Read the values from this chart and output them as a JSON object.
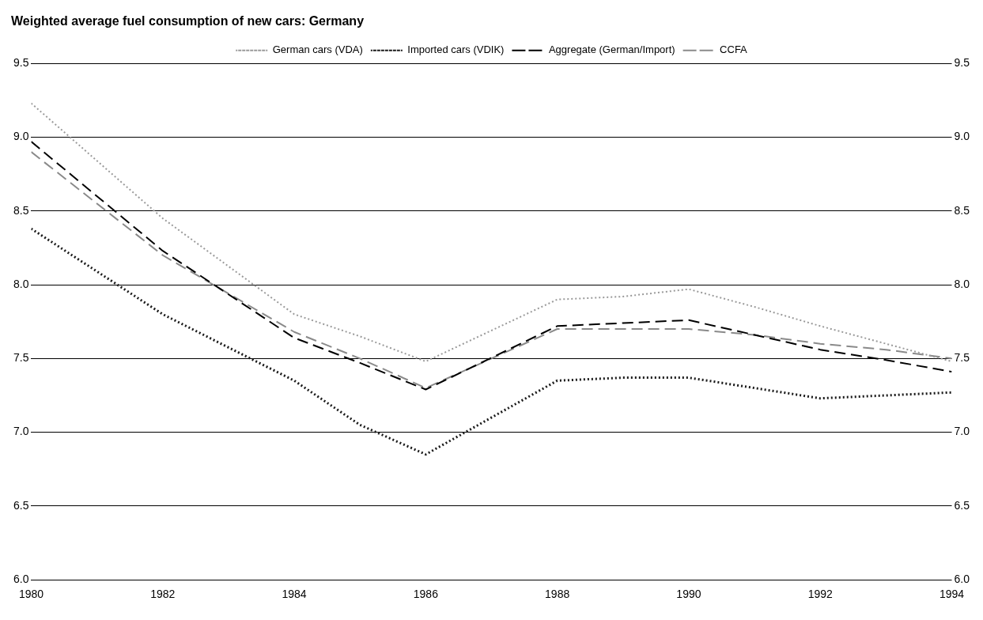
{
  "chart_data": {
    "type": "line",
    "title": "Weighted average fuel consumption of new cars: Germany",
    "x": [
      1980,
      1982,
      1984,
      1985,
      1986,
      1988,
      1989,
      1990,
      1991,
      1992,
      1993,
      1994
    ],
    "series": [
      {
        "name": "German cars (VDA)",
        "color": "#9a9a9a",
        "line_style": "dotted",
        "values": [
          9.23,
          8.45,
          7.8,
          7.65,
          7.48,
          7.9,
          7.92,
          7.97,
          7.85,
          7.72,
          7.6,
          7.48
        ]
      },
      {
        "name": "Imported cars (VDIK)",
        "color": "#1a1a1a",
        "line_style": "dotted",
        "values": [
          8.38,
          7.8,
          7.35,
          7.05,
          6.85,
          7.35,
          7.37,
          7.37,
          7.3,
          7.23,
          7.25,
          7.27
        ]
      },
      {
        "name": "Aggregate (German/Import)",
        "color": "#000000",
        "line_style": "dashed",
        "values": [
          8.97,
          8.23,
          7.64,
          7.47,
          7.29,
          7.72,
          7.74,
          7.76,
          7.66,
          7.56,
          7.49,
          7.41
        ]
      },
      {
        "name": "CCFA",
        "color": "#8a8a8a",
        "line_style": "dashed",
        "values": [
          8.9,
          8.2,
          7.68,
          7.5,
          7.3,
          7.7,
          7.7,
          7.7,
          7.66,
          7.6,
          7.56,
          7.5
        ]
      }
    ],
    "xlim": [
      1980,
      1994
    ],
    "xticks": [
      1980,
      1982,
      1984,
      1986,
      1988,
      1990,
      1992,
      1994
    ],
    "ylim": [
      6.0,
      9.5
    ],
    "yticks": [
      {
        "value": 6.0,
        "label": "6.0"
      },
      {
        "value": 6.5,
        "label": "6.5"
      },
      {
        "value": 7.0,
        "label": "7.0"
      },
      {
        "value": 7.5,
        "label": "7.5"
      },
      {
        "value": 8.0,
        "label": "8.0"
      },
      {
        "value": 8.5,
        "label": "8.5"
      },
      {
        "value": 9.0,
        "label": "9.0"
      },
      {
        "value": 9.5,
        "label": "9.5"
      }
    ],
    "y2lim": [
      6.0,
      9.5
    ],
    "y2ticks": [
      {
        "value": 6.0,
        "label": "6.0"
      },
      {
        "value": 6.5,
        "label": "6.5"
      },
      {
        "value": 7.0,
        "label": "7.0"
      },
      {
        "value": 7.5,
        "label": "7.5"
      },
      {
        "value": 8.0,
        "label": "8.0"
      },
      {
        "value": 8.5,
        "label": "8.5"
      },
      {
        "value": 9.0,
        "label": "9.0"
      },
      {
        "value": 9.5,
        "label": "9.5"
      }
    ],
    "grid": "y",
    "legend": "top",
    "marker": "none"
  }
}
